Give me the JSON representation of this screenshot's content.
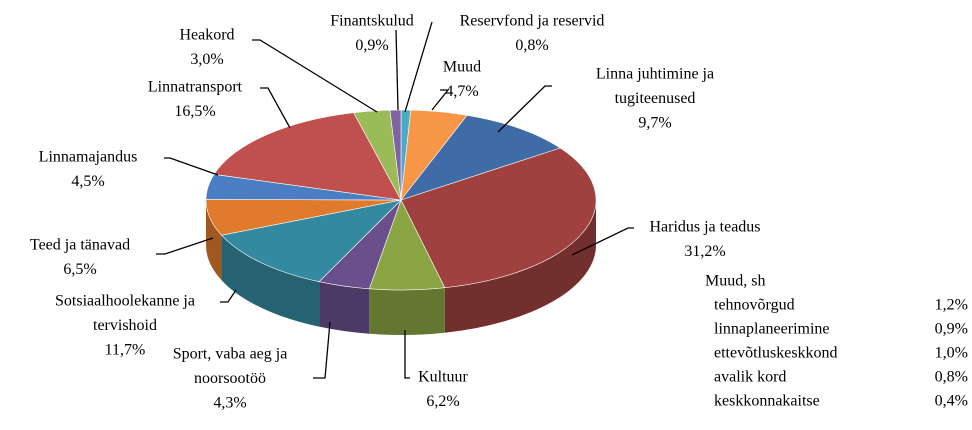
{
  "chart_data": {
    "type": "pie3d",
    "categories": [
      "Reservfond ja reservid",
      "Muud",
      [
        "Linna juhtimine ja",
        "tugiteenused"
      ],
      "Haridus ja teadus",
      "Kultuur",
      [
        "Sport, vaba aeg ja",
        "noorsootöö"
      ],
      [
        "Sotsiaalhoolekanne ja",
        "tervishoid"
      ],
      "Teed ja tänavad",
      "Linnamajandus",
      "Linnatransport",
      "Heakord",
      "Finantskulud"
    ],
    "values": [
      0.8,
      4.7,
      9.7,
      31.2,
      6.2,
      4.3,
      11.7,
      6.5,
      4.5,
      16.5,
      3.0,
      0.9
    ],
    "value_labels": [
      "0,8%",
      "4,7%",
      "9,7%",
      "31,2%",
      "6,2%",
      "4,3%",
      "11,7%",
      "6,5%",
      "4,5%",
      "16,5%",
      "3,0%",
      "0,9%"
    ],
    "colors": [
      "#4bacc6",
      "#f79646",
      "#3f6ca6",
      "#a0413f",
      "#8aa544",
      "#6a4f8c",
      "#3389a0",
      "#e07a2c",
      "#4a7dc2",
      "#c0504d",
      "#9bbb59",
      "#8064a2"
    ],
    "breakdown": {
      "title": "Muud, sh",
      "items": [
        {
          "name": "tehnovõrgud",
          "share": "1,2%"
        },
        {
          "name": "linnaplaneerimine",
          "share": "0,9%"
        },
        {
          "name": "ettevõtluskeskkond",
          "share": "1,0%"
        },
        {
          "name": "avalik kord",
          "share": "0,8%"
        },
        {
          "name": "keskkonnakaitse",
          "share": "0,4%"
        }
      ]
    }
  }
}
